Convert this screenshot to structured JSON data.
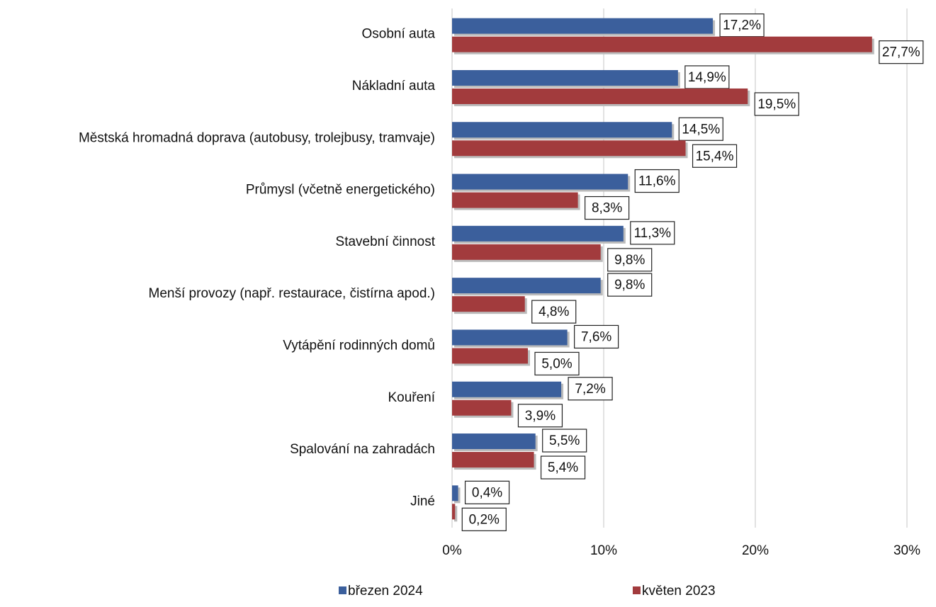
{
  "chart_data": {
    "type": "bar",
    "orientation": "horizontal",
    "categories": [
      "Osobní auta",
      "Nákladní auta",
      "Městská hromadná doprava (autobusy, trolejbusy, tramvaje)",
      "Průmysl (včetně energetického)",
      "Stavební činnost",
      "Menší provozy (např. restaurace, čistírna apod.)",
      "Vytápění rodinných domů",
      "Kouření",
      "Spalování na zahradách",
      "Jiné"
    ],
    "series": [
      {
        "name": "březen 2024",
        "color": "#3b5f9c",
        "values": [
          17.2,
          14.9,
          14.5,
          11.6,
          11.3,
          9.8,
          7.6,
          7.2,
          5.5,
          0.4
        ],
        "value_labels": [
          "17,2%",
          "14,9%",
          "14,5%",
          "11,6%",
          "11,3%",
          "9,8%",
          "7,6%",
          "7,2%",
          "5,5%",
          "0,4%"
        ]
      },
      {
        "name": "květen 2023",
        "color": "#a23b3d",
        "values": [
          27.7,
          19.5,
          15.4,
          8.3,
          9.8,
          4.8,
          5.0,
          3.9,
          5.4,
          0.2
        ],
        "value_labels": [
          "27,7%",
          "19,5%",
          "15,4%",
          "8,3%",
          "9,8%",
          "4,8%",
          "5,0%",
          "3,9%",
          "5,4%",
          "0,2%"
        ]
      }
    ],
    "xlim": [
      0,
      30
    ],
    "xticks": [
      {
        "value": 0,
        "label": "0%"
      },
      {
        "value": 10,
        "label": "10%"
      },
      {
        "value": 20,
        "label": "20%"
      },
      {
        "value": 30,
        "label": "30%"
      }
    ],
    "grid": true,
    "legend": "bottom"
  }
}
